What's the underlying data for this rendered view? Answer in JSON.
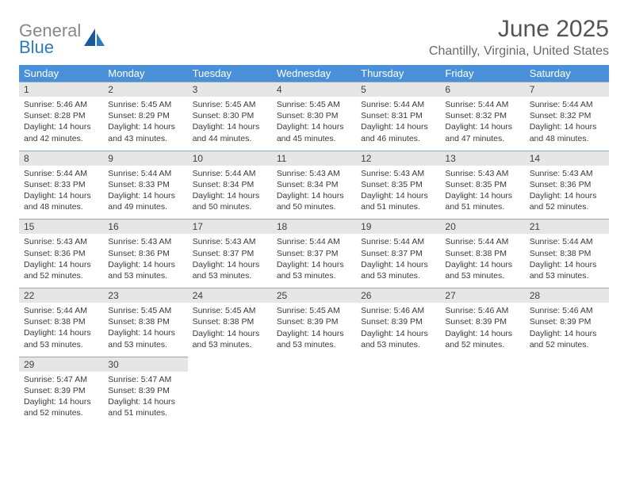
{
  "brand": {
    "word1": "General",
    "word2": "Blue",
    "word1_color": "#888888",
    "word2_color": "#2b7bc0",
    "shape_color": "#1b5a9a"
  },
  "header": {
    "title": "June 2025",
    "location": "Chantilly, Virginia, United States",
    "title_color": "#545454",
    "location_color": "#6a6a6a"
  },
  "colors": {
    "header_bg": "#4a90d9",
    "header_fg": "#ffffff",
    "daynum_bg": "#e6e6e6",
    "border": "#8fa8bc",
    "text": "#3a3a3a"
  },
  "day_headers": [
    "Sunday",
    "Monday",
    "Tuesday",
    "Wednesday",
    "Thursday",
    "Friday",
    "Saturday"
  ],
  "weeks": [
    [
      {
        "n": "1",
        "sr": "Sunrise: 5:46 AM",
        "ss": "Sunset: 8:28 PM",
        "d1": "Daylight: 14 hours",
        "d2": "and 42 minutes."
      },
      {
        "n": "2",
        "sr": "Sunrise: 5:45 AM",
        "ss": "Sunset: 8:29 PM",
        "d1": "Daylight: 14 hours",
        "d2": "and 43 minutes."
      },
      {
        "n": "3",
        "sr": "Sunrise: 5:45 AM",
        "ss": "Sunset: 8:30 PM",
        "d1": "Daylight: 14 hours",
        "d2": "and 44 minutes."
      },
      {
        "n": "4",
        "sr": "Sunrise: 5:45 AM",
        "ss": "Sunset: 8:30 PM",
        "d1": "Daylight: 14 hours",
        "d2": "and 45 minutes."
      },
      {
        "n": "5",
        "sr": "Sunrise: 5:44 AM",
        "ss": "Sunset: 8:31 PM",
        "d1": "Daylight: 14 hours",
        "d2": "and 46 minutes."
      },
      {
        "n": "6",
        "sr": "Sunrise: 5:44 AM",
        "ss": "Sunset: 8:32 PM",
        "d1": "Daylight: 14 hours",
        "d2": "and 47 minutes."
      },
      {
        "n": "7",
        "sr": "Sunrise: 5:44 AM",
        "ss": "Sunset: 8:32 PM",
        "d1": "Daylight: 14 hours",
        "d2": "and 48 minutes."
      }
    ],
    [
      {
        "n": "8",
        "sr": "Sunrise: 5:44 AM",
        "ss": "Sunset: 8:33 PM",
        "d1": "Daylight: 14 hours",
        "d2": "and 48 minutes."
      },
      {
        "n": "9",
        "sr": "Sunrise: 5:44 AM",
        "ss": "Sunset: 8:33 PM",
        "d1": "Daylight: 14 hours",
        "d2": "and 49 minutes."
      },
      {
        "n": "10",
        "sr": "Sunrise: 5:44 AM",
        "ss": "Sunset: 8:34 PM",
        "d1": "Daylight: 14 hours",
        "d2": "and 50 minutes."
      },
      {
        "n": "11",
        "sr": "Sunrise: 5:43 AM",
        "ss": "Sunset: 8:34 PM",
        "d1": "Daylight: 14 hours",
        "d2": "and 50 minutes."
      },
      {
        "n": "12",
        "sr": "Sunrise: 5:43 AM",
        "ss": "Sunset: 8:35 PM",
        "d1": "Daylight: 14 hours",
        "d2": "and 51 minutes."
      },
      {
        "n": "13",
        "sr": "Sunrise: 5:43 AM",
        "ss": "Sunset: 8:35 PM",
        "d1": "Daylight: 14 hours",
        "d2": "and 51 minutes."
      },
      {
        "n": "14",
        "sr": "Sunrise: 5:43 AM",
        "ss": "Sunset: 8:36 PM",
        "d1": "Daylight: 14 hours",
        "d2": "and 52 minutes."
      }
    ],
    [
      {
        "n": "15",
        "sr": "Sunrise: 5:43 AM",
        "ss": "Sunset: 8:36 PM",
        "d1": "Daylight: 14 hours",
        "d2": "and 52 minutes."
      },
      {
        "n": "16",
        "sr": "Sunrise: 5:43 AM",
        "ss": "Sunset: 8:36 PM",
        "d1": "Daylight: 14 hours",
        "d2": "and 53 minutes."
      },
      {
        "n": "17",
        "sr": "Sunrise: 5:43 AM",
        "ss": "Sunset: 8:37 PM",
        "d1": "Daylight: 14 hours",
        "d2": "and 53 minutes."
      },
      {
        "n": "18",
        "sr": "Sunrise: 5:44 AM",
        "ss": "Sunset: 8:37 PM",
        "d1": "Daylight: 14 hours",
        "d2": "and 53 minutes."
      },
      {
        "n": "19",
        "sr": "Sunrise: 5:44 AM",
        "ss": "Sunset: 8:37 PM",
        "d1": "Daylight: 14 hours",
        "d2": "and 53 minutes."
      },
      {
        "n": "20",
        "sr": "Sunrise: 5:44 AM",
        "ss": "Sunset: 8:38 PM",
        "d1": "Daylight: 14 hours",
        "d2": "and 53 minutes."
      },
      {
        "n": "21",
        "sr": "Sunrise: 5:44 AM",
        "ss": "Sunset: 8:38 PM",
        "d1": "Daylight: 14 hours",
        "d2": "and 53 minutes."
      }
    ],
    [
      {
        "n": "22",
        "sr": "Sunrise: 5:44 AM",
        "ss": "Sunset: 8:38 PM",
        "d1": "Daylight: 14 hours",
        "d2": "and 53 minutes."
      },
      {
        "n": "23",
        "sr": "Sunrise: 5:45 AM",
        "ss": "Sunset: 8:38 PM",
        "d1": "Daylight: 14 hours",
        "d2": "and 53 minutes."
      },
      {
        "n": "24",
        "sr": "Sunrise: 5:45 AM",
        "ss": "Sunset: 8:38 PM",
        "d1": "Daylight: 14 hours",
        "d2": "and 53 minutes."
      },
      {
        "n": "25",
        "sr": "Sunrise: 5:45 AM",
        "ss": "Sunset: 8:39 PM",
        "d1": "Daylight: 14 hours",
        "d2": "and 53 minutes."
      },
      {
        "n": "26",
        "sr": "Sunrise: 5:46 AM",
        "ss": "Sunset: 8:39 PM",
        "d1": "Daylight: 14 hours",
        "d2": "and 53 minutes."
      },
      {
        "n": "27",
        "sr": "Sunrise: 5:46 AM",
        "ss": "Sunset: 8:39 PM",
        "d1": "Daylight: 14 hours",
        "d2": "and 52 minutes."
      },
      {
        "n": "28",
        "sr": "Sunrise: 5:46 AM",
        "ss": "Sunset: 8:39 PM",
        "d1": "Daylight: 14 hours",
        "d2": "and 52 minutes."
      }
    ],
    [
      {
        "n": "29",
        "sr": "Sunrise: 5:47 AM",
        "ss": "Sunset: 8:39 PM",
        "d1": "Daylight: 14 hours",
        "d2": "and 52 minutes."
      },
      {
        "n": "30",
        "sr": "Sunrise: 5:47 AM",
        "ss": "Sunset: 8:39 PM",
        "d1": "Daylight: 14 hours",
        "d2": "and 51 minutes."
      },
      null,
      null,
      null,
      null,
      null
    ]
  ]
}
